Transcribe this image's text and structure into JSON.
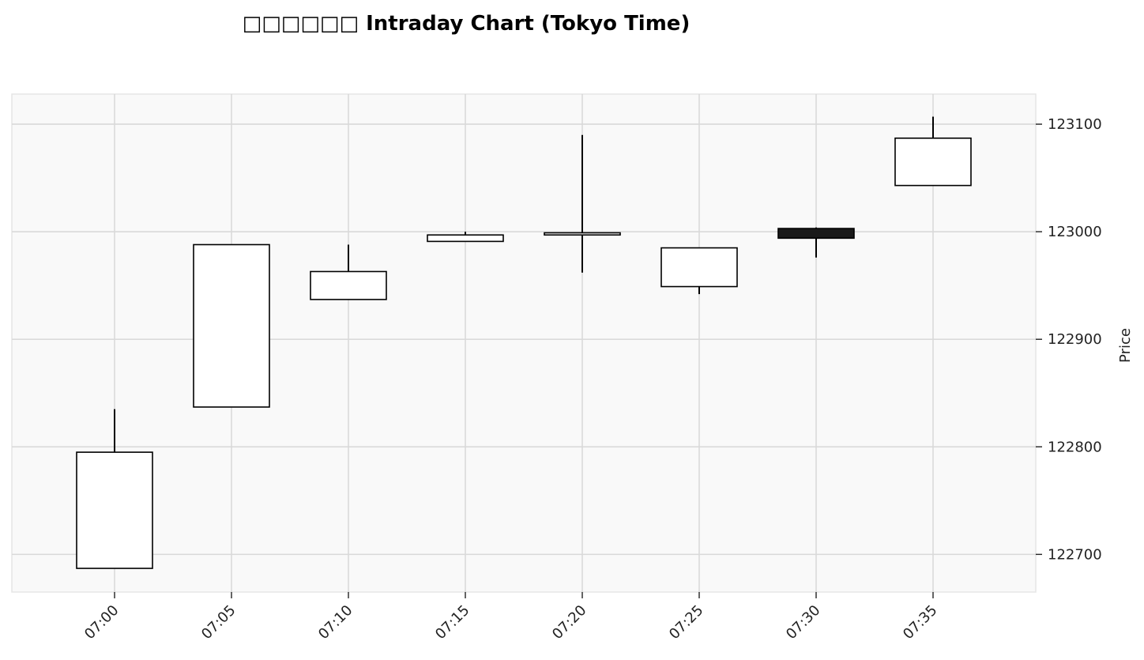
{
  "chart_data": {
    "type": "candlestick",
    "title": "□□□□□□ Intraday Chart (Tokyo Time)",
    "ylabel": "Price",
    "xlabel": "",
    "ylim": [
      122665,
      123128
    ],
    "y_ticks": [
      122700,
      122800,
      122900,
      123000,
      123100
    ],
    "grid": true,
    "axis_position": "right",
    "colors": {
      "up": "#ffffff",
      "down": "#1a1a1a",
      "edge": "#000000",
      "panel": "#f9f9f9",
      "grid": "#d9d9d9"
    },
    "candles": [
      {
        "time": "07:00",
        "open": 122687,
        "high": 122835,
        "low": 122687,
        "close": 122795
      },
      {
        "time": "07:05",
        "open": 122837,
        "high": 122988,
        "low": 122837,
        "close": 122988
      },
      {
        "time": "07:10",
        "open": 122937,
        "high": 122988,
        "low": 122937,
        "close": 122963
      },
      {
        "time": "07:15",
        "open": 122991,
        "high": 123000,
        "low": 122991,
        "close": 122997
      },
      {
        "time": "07:20",
        "open": 122997,
        "high": 123090,
        "low": 122962,
        "close": 122999
      },
      {
        "time": "07:25",
        "open": 122949,
        "high": 122985,
        "low": 122942,
        "close": 122985
      },
      {
        "time": "07:30",
        "open": 123003,
        "high": 123004,
        "low": 122976,
        "close": 122994
      },
      {
        "time": "07:35",
        "open": 123043,
        "high": 123107,
        "low": 123043,
        "close": 123087
      }
    ]
  }
}
